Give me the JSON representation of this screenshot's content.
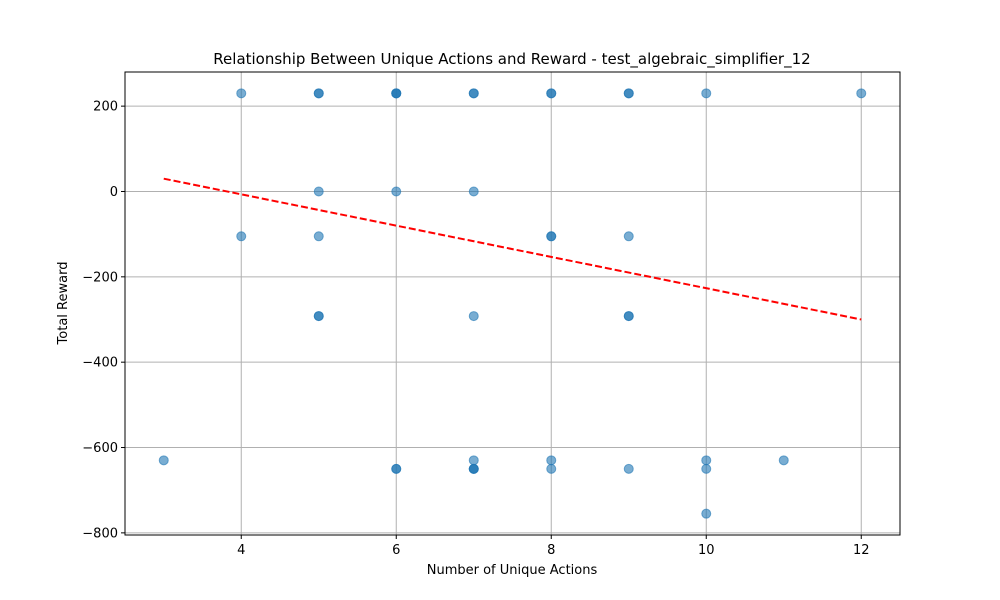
{
  "chart_data": {
    "type": "scatter",
    "title": "Relationship Between Unique Actions and Reward - test_algebraic_simplifier_12",
    "xlabel": "Number of Unique Actions",
    "ylabel": "Total Reward",
    "xlim": [
      2.5,
      12.5
    ],
    "ylim": [
      -805,
      280
    ],
    "xticks": [
      4,
      6,
      8,
      10,
      12
    ],
    "yticks": [
      -800,
      -600,
      -400,
      -200,
      0,
      200
    ],
    "ytick_labels": [
      "−800",
      "−600",
      "−400",
      "−200",
      "0",
      "200"
    ],
    "xtick_labels": [
      "4",
      "6",
      "8",
      "10",
      "12"
    ],
    "grid": true,
    "colors": {
      "points": "#1f77b4",
      "trend": "#ff0000",
      "grid": "#b0b0b0"
    },
    "points": [
      {
        "x": 3,
        "y": -630
      },
      {
        "x": 4,
        "y": 230
      },
      {
        "x": 4,
        "y": -105
      },
      {
        "x": 5,
        "y": 230
      },
      {
        "x": 5,
        "y": 230
      },
      {
        "x": 5,
        "y": 0
      },
      {
        "x": 5,
        "y": -105
      },
      {
        "x": 5,
        "y": -292
      },
      {
        "x": 5,
        "y": -292
      },
      {
        "x": 6,
        "y": 230
      },
      {
        "x": 6,
        "y": 230
      },
      {
        "x": 6,
        "y": 230
      },
      {
        "x": 6,
        "y": 0
      },
      {
        "x": 6,
        "y": -650
      },
      {
        "x": 6,
        "y": -650
      },
      {
        "x": 7,
        "y": 230
      },
      {
        "x": 7,
        "y": 230
      },
      {
        "x": 7,
        "y": 0
      },
      {
        "x": 7,
        "y": -292
      },
      {
        "x": 7,
        "y": -630
      },
      {
        "x": 7,
        "y": -650
      },
      {
        "x": 7,
        "y": -650
      },
      {
        "x": 7,
        "y": -650
      },
      {
        "x": 8,
        "y": 230
      },
      {
        "x": 8,
        "y": 230
      },
      {
        "x": 8,
        "y": -105
      },
      {
        "x": 8,
        "y": -105
      },
      {
        "x": 8,
        "y": -630
      },
      {
        "x": 8,
        "y": -650
      },
      {
        "x": 9,
        "y": 230
      },
      {
        "x": 9,
        "y": 230
      },
      {
        "x": 9,
        "y": -105
      },
      {
        "x": 9,
        "y": -292
      },
      {
        "x": 9,
        "y": -292
      },
      {
        "x": 9,
        "y": -650
      },
      {
        "x": 10,
        "y": 230
      },
      {
        "x": 10,
        "y": -630
      },
      {
        "x": 10,
        "y": -650
      },
      {
        "x": 10,
        "y": -755
      },
      {
        "x": 11,
        "y": -630
      },
      {
        "x": 12,
        "y": 230
      }
    ],
    "trendline": {
      "x": [
        3,
        12
      ],
      "y": [
        30,
        -300
      ]
    }
  }
}
